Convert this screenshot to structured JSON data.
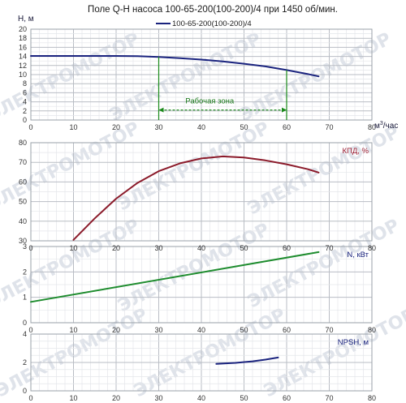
{
  "chart_data": [
    {
      "id": "qh",
      "type": "line",
      "title": "Поле Q-H насоса 100-65-200(100-200)/4 при 1450 об/мин.",
      "xlabel_base": "м",
      "xlabel_sup": "3",
      "xlabel_rest": "/час",
      "ylabel": "H, м",
      "xlim": [
        0,
        80
      ],
      "ylim": [
        0,
        20
      ],
      "xticks": [
        "0",
        "10",
        "20",
        "30",
        "40",
        "50",
        "60",
        "70",
        "80"
      ],
      "yticks": [
        "0",
        "2",
        "4",
        "6",
        "8",
        "10",
        "12",
        "14",
        "16",
        "18",
        "20"
      ],
      "grid": true,
      "legend_position": "top-center",
      "series": [
        {
          "name": "100-65-200(100-200)/4",
          "color": "#1a237e",
          "x": [
            0,
            10,
            20,
            25,
            30,
            35,
            40,
            45,
            50,
            55,
            60,
            65,
            67.5
          ],
          "y": [
            14.1,
            14.1,
            14.1,
            14.05,
            13.9,
            13.6,
            13.3,
            12.9,
            12.4,
            11.8,
            11.0,
            10.1,
            9.6
          ]
        }
      ],
      "zone": {
        "label": "Рабочая зона",
        "x_start": 30,
        "x_end": 60,
        "y_arrow": 2.2,
        "color": "#1a8a1a"
      }
    },
    {
      "id": "eff",
      "type": "line",
      "panel_label": "КПД, %",
      "label_color": "#9b1b30",
      "xlim": [
        0,
        80
      ],
      "ylim": [
        30,
        80
      ],
      "xticks": [
        "0",
        "10",
        "20",
        "30",
        "40",
        "50",
        "60",
        "70",
        "80"
      ],
      "yticks": [
        "30",
        "40",
        "50",
        "60",
        "70",
        "80"
      ],
      "grid": true,
      "series": [
        {
          "color": "#8b1a2a",
          "x": [
            10,
            15,
            20,
            25,
            30,
            35,
            40,
            45,
            50,
            55,
            60,
            65,
            67.5
          ],
          "y": [
            30.5,
            41.5,
            51.5,
            59.5,
            65.5,
            69.5,
            72.0,
            73.0,
            72.5,
            71.0,
            69.0,
            66.5,
            64.8
          ]
        }
      ]
    },
    {
      "id": "power",
      "type": "line",
      "panel_label": "N, кВт",
      "label_color": "#1a237e",
      "xlim": [
        0,
        80
      ],
      "ylim": [
        0,
        3
      ],
      "xticks": [
        "0",
        "10",
        "20",
        "30",
        "40",
        "50",
        "60",
        "70",
        "80"
      ],
      "yticks": [
        "0",
        "1",
        "2",
        "3"
      ],
      "grid": true,
      "series": [
        {
          "color": "#1e8c2e",
          "x": [
            0,
            67.5
          ],
          "y": [
            0.82,
            2.78
          ]
        }
      ]
    },
    {
      "id": "npsh",
      "type": "line",
      "panel_label": "NPSH, м",
      "label_color": "#1a237e",
      "xlim": [
        0,
        80
      ],
      "ylim": [
        0,
        4
      ],
      "xticks": [
        "0",
        "10",
        "20",
        "30",
        "40",
        "50",
        "60",
        "70",
        "80"
      ],
      "yticks": [
        "0",
        "2",
        "4"
      ],
      "grid": true,
      "series": [
        {
          "color": "#1a237e",
          "x": [
            43.5,
            48,
            52,
            55,
            58
          ],
          "y": [
            1.9,
            1.97,
            2.08,
            2.2,
            2.35
          ]
        }
      ]
    }
  ],
  "watermark": "ЭЛЕКТРОМОТОР"
}
